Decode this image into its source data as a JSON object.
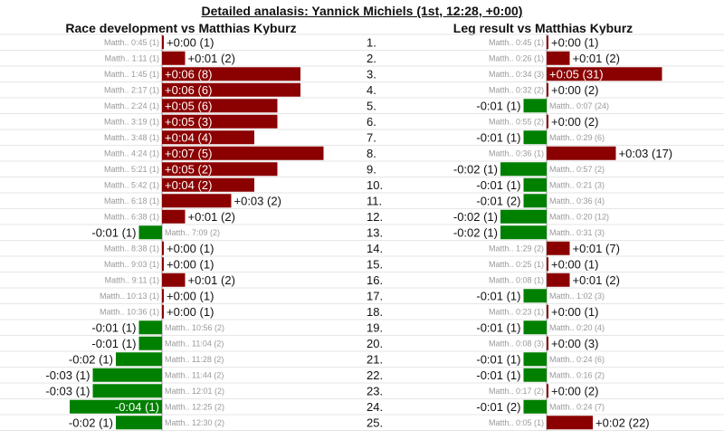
{
  "title": "Detailed analasis: Yannick Michiels (1st, 12:28, +0:00)",
  "colors": {
    "behind": "#8b0000",
    "ahead": "#008000",
    "grid": "#e6e6e6"
  },
  "chart_data": [
    {
      "type": "bar",
      "title": "Race development vs Matthias Kyburz",
      "unit": "seconds",
      "legs": [
        "1.",
        "2.",
        "3.",
        "4.",
        "5.",
        "6.",
        "7.",
        "8.",
        "9.",
        "10.",
        "11.",
        "12.",
        "13.",
        "14.",
        "15.",
        "16.",
        "17.",
        "18.",
        "19.",
        "20.",
        "21.",
        "22.",
        "23.",
        "24.",
        "25."
      ],
      "labels": [
        "Matth.. 0:45 (1)",
        "Matth.. 1:11 (1)",
        "Matth.. 1:45 (1)",
        "Matth.. 2:17 (1)",
        "Matth.. 2:24 (1)",
        "Matth.. 3:19 (1)",
        "Matth.. 3:48 (1)",
        "Matth.. 4:24 (1)",
        "Matth.. 5:21 (1)",
        "Matth.. 5:42 (1)",
        "Matth.. 6:18 (1)",
        "Matth.. 6:38 (1)",
        "Matth.. 7:09 (2)",
        "Matth.. 8:38 (1)",
        "Matth.. 9:03 (1)",
        "Matth.. 9:11 (1)",
        "Matth.. 10:13 (1)",
        "Matth.. 10:36 (1)",
        "Matth.. 10:56 (2)",
        "Matth.. 11:04 (2)",
        "Matth.. 11:28 (2)",
        "Matth.. 11:44 (2)",
        "Matth.. 12:01 (2)",
        "Matth.. 12:25 (2)",
        "Matth.. 12:30 (2)"
      ],
      "values": [
        0,
        1,
        6,
        6,
        5,
        5,
        4,
        7,
        5,
        4,
        3,
        1,
        -1,
        0,
        0,
        1,
        0,
        0,
        -1,
        -1,
        -2,
        -3,
        -3,
        -4,
        -2
      ],
      "value_labels": [
        "+0:00 (1)",
        "+0:01 (2)",
        "+0:06 (8)",
        "+0:06 (6)",
        "+0:05 (6)",
        "+0:05 (3)",
        "+0:04 (4)",
        "+0:07 (5)",
        "+0:05 (2)",
        "+0:04 (2)",
        "+0:03 (2)",
        "+0:01 (2)",
        "-0:01 (1)",
        "+0:00 (1)",
        "+0:00 (1)",
        "+0:01 (2)",
        "+0:00 (1)",
        "+0:00 (1)",
        "-0:01 (1)",
        "-0:01 (1)",
        "-0:02 (1)",
        "-0:03 (1)",
        "-0:03 (1)",
        "-0:04 (1)",
        "-0:02 (1)"
      ]
    },
    {
      "type": "bar",
      "title": "Leg result vs Matthias Kyburz",
      "unit": "seconds",
      "labels": [
        "Matth.. 0:45 (1)",
        "Matth.. 0:26 (1)",
        "Matth.. 0:34 (3)",
        "Matth.. 0:32 (2)",
        "Matth.. 0:07 (24)",
        "Matth.. 0:55 (2)",
        "Matth.. 0:29 (6)",
        "Matth.. 0:36 (1)",
        "Matth.. 0:57 (2)",
        "Matth.. 0:21 (3)",
        "Matth.. 0:36 (4)",
        "Matth.. 0:20 (12)",
        "Matth.. 0:31 (3)",
        "Matth.. 1:29 (2)",
        "Matth.. 0:25 (1)",
        "Matth.. 0:08 (1)",
        "Matth.. 1:02 (3)",
        "Matth.. 0:23 (1)",
        "Matth.. 0:20 (4)",
        "Matth.. 0:08 (3)",
        "Matth.. 0:24 (6)",
        "Matth.. 0:16 (2)",
        "Matth.. 0:17 (2)",
        "Matth.. 0:24 (7)",
        "Matth.. 0:05 (1)"
      ],
      "values": [
        0,
        1,
        5,
        0,
        -1,
        0,
        -1,
        3,
        -2,
        -1,
        -1,
        -2,
        -2,
        1,
        0,
        1,
        -1,
        0,
        -1,
        0,
        -1,
        -1,
        0,
        -1,
        2
      ],
      "value_labels": [
        "+0:00 (1)",
        "+0:01 (2)",
        "+0:05 (31)",
        "+0:00 (2)",
        "-0:01 (1)",
        "+0:00 (2)",
        "-0:01 (1)",
        "+0:03 (17)",
        "-0:02 (1)",
        "-0:01 (1)",
        "-0:01 (2)",
        "-0:02 (1)",
        "-0:02 (1)",
        "+0:01 (7)",
        "+0:00 (1)",
        "+0:01 (2)",
        "-0:01 (1)",
        "+0:00 (1)",
        "-0:01 (1)",
        "+0:00 (3)",
        "-0:01 (1)",
        "-0:01 (1)",
        "+0:00 (2)",
        "-0:01 (2)",
        "+0:02 (22)"
      ]
    }
  ]
}
